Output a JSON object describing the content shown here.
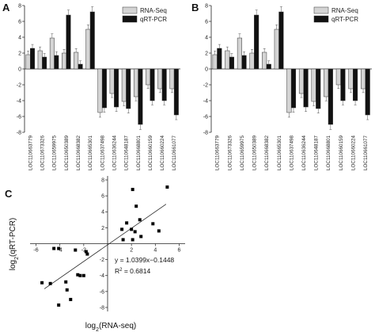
{
  "colors": {
    "rna_fill": "#d4d4d4",
    "pcr_fill": "#111111",
    "axis": "#222222"
  },
  "chart_data": [
    {
      "type": "bar",
      "panel_label": "A",
      "categories": [
        "LOC110663779",
        "LOC110673326",
        "LOC110659975",
        "LOC110650389",
        "LOC110668382",
        "LOC110665301",
        "LOC110637498",
        "LOC110636244",
        "LOC110648187",
        "LOC110668801",
        "LOC110660159",
        "LOC110660224",
        "LOC110661077"
      ],
      "series": [
        {
          "name": "RNA-Seq",
          "values": [
            1.8,
            2.3,
            3.9,
            2.0,
            2.1,
            5.0,
            -5.5,
            -3.1,
            -4.1,
            -3.5,
            -2.0,
            -2.5,
            -2.5
          ]
        },
        {
          "name": "qRT-PCR",
          "values": [
            2.6,
            1.5,
            1.7,
            6.8,
            0.6,
            7.2,
            -4.9,
            -4.8,
            -5.0,
            -7.0,
            -4.0,
            -4.0,
            -5.8
          ]
        }
      ],
      "error_bars": true,
      "yticks": [
        -8,
        -6,
        -4,
        -2,
        0,
        2,
        4,
        6,
        8
      ],
      "ylim": [
        -8,
        8
      ],
      "legend_position": "top-right",
      "grid": false
    },
    {
      "type": "bar",
      "panel_label": "B",
      "categories": [
        "LOC110663779",
        "LOC110673326",
        "LOC110659975",
        "LOC110650389",
        "LOC110668382",
        "LOC110665301",
        "LOC110637498",
        "LOC110636244",
        "LOC110648187",
        "LOC110668801",
        "LOC110660159",
        "LOC110660224",
        "LOC110661077"
      ],
      "series": [
        {
          "name": "RNA-Seq",
          "values": [
            1.8,
            2.3,
            3.9,
            2.0,
            2.1,
            5.0,
            -5.5,
            -3.1,
            -4.1,
            -3.5,
            -2.0,
            -2.5,
            -2.5
          ]
        },
        {
          "name": "qRT-PCR",
          "values": [
            2.6,
            1.5,
            1.7,
            6.8,
            0.6,
            7.2,
            -4.9,
            -4.8,
            -5.0,
            -7.0,
            -4.0,
            -4.0,
            -5.8
          ]
        }
      ],
      "error_bars": true,
      "yticks": [
        -8,
        -6,
        -4,
        -2,
        0,
        2,
        4,
        6,
        8
      ],
      "ylim": [
        -8,
        8
      ],
      "legend_position": "top-right",
      "grid": false
    },
    {
      "type": "scatter",
      "panel_label": "C",
      "xlabel": "log2(RNA-seq)",
      "ylabel": "log2(qRT-PCR)",
      "xlim": [
        -6.5,
        6.5
      ],
      "ylim": [
        -8.5,
        8.5
      ],
      "xticks": [
        -6,
        -4,
        -2,
        2,
        4,
        6
      ],
      "yticks": [
        -8,
        -6,
        -4,
        -2,
        2,
        4,
        6,
        8
      ],
      "equation": "y = 1.0399x−0.1448",
      "r2_text": "R",
      "r2_value": " = 0.6814",
      "fit": {
        "slope": 1.0399,
        "intercept": -0.1448
      },
      "points": [
        {
          "x": 5.0,
          "y": 7.1
        },
        {
          "x": 2.1,
          "y": 6.8
        },
        {
          "x": 2.4,
          "y": 4.7
        },
        {
          "x": 2.7,
          "y": 3.0
        },
        {
          "x": 1.6,
          "y": 2.6
        },
        {
          "x": 3.8,
          "y": 2.5
        },
        {
          "x": 1.2,
          "y": 1.8
        },
        {
          "x": 2.0,
          "y": 1.8
        },
        {
          "x": 2.3,
          "y": 1.5
        },
        {
          "x": 4.3,
          "y": 1.6
        },
        {
          "x": 2.8,
          "y": 0.9
        },
        {
          "x": 1.3,
          "y": 0.5
        },
        {
          "x": 2.1,
          "y": 0.5
        },
        {
          "x": -4.5,
          "y": -0.6
        },
        {
          "x": -4.1,
          "y": -0.6
        },
        {
          "x": -2.7,
          "y": -0.8
        },
        {
          "x": -1.8,
          "y": -1.0
        },
        {
          "x": -1.7,
          "y": -1.3
        },
        {
          "x": -5.5,
          "y": -4.9
        },
        {
          "x": -4.8,
          "y": -5.0
        },
        {
          "x": -2.5,
          "y": -3.9
        },
        {
          "x": -2.3,
          "y": -4.0
        },
        {
          "x": -2.0,
          "y": -4.0
        },
        {
          "x": -3.4,
          "y": -5.8
        },
        {
          "x": -3.5,
          "y": -4.8
        },
        {
          "x": -3.1,
          "y": -7.0
        },
        {
          "x": -4.1,
          "y": -7.7
        }
      ]
    }
  ]
}
